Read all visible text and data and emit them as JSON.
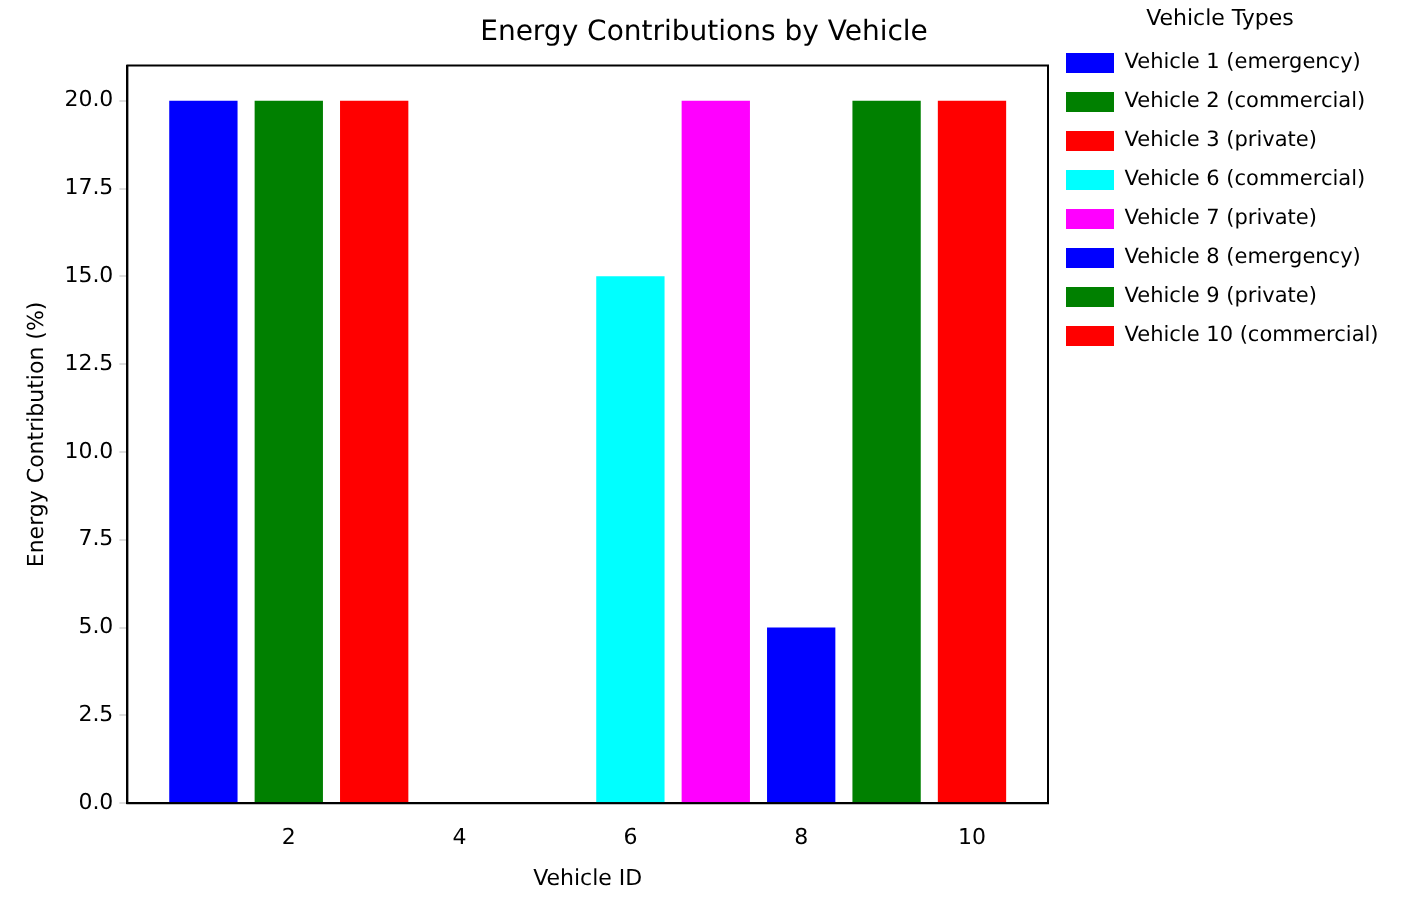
{
  "chart_data": {
    "type": "bar",
    "title": "Energy Contributions by Vehicle",
    "xlabel": "Vehicle ID",
    "ylabel": "Energy Contribution (%)",
    "legend_title": "Vehicle Types",
    "legend": "top right",
    "grid": false,
    "xlim": [
      0.11,
      10.89
    ],
    "xticks": [
      2,
      4,
      6,
      8,
      10
    ],
    "ylim": [
      0,
      21
    ],
    "yticks": [
      {
        "value": 0,
        "label": "0.0"
      },
      {
        "value": 2.5,
        "label": "2.5"
      },
      {
        "value": 5,
        "label": "5.0"
      },
      {
        "value": 7.5,
        "label": "7.5"
      },
      {
        "value": 10,
        "label": "10.0"
      },
      {
        "value": 12.5,
        "label": "12.5"
      },
      {
        "value": 15,
        "label": "15.0"
      },
      {
        "value": 17.5,
        "label": "17.5"
      },
      {
        "value": 20,
        "label": "20.0"
      }
    ],
    "series": [
      {
        "name": "Vehicle 1 (emergency)",
        "color": "#0000ff",
        "x": [
          1
        ],
        "values": [
          20
        ]
      },
      {
        "name": "Vehicle 2 (commercial)",
        "color": "#008000",
        "x": [
          2
        ],
        "values": [
          20
        ]
      },
      {
        "name": "Vehicle 3 (private)",
        "color": "#ff0000",
        "x": [
          3
        ],
        "values": [
          20
        ]
      },
      {
        "name": "Vehicle 6 (commercial)",
        "color": "#00ffff",
        "x": [
          6
        ],
        "values": [
          15
        ]
      },
      {
        "name": "Vehicle 7 (private)",
        "color": "#ff00ff",
        "x": [
          7
        ],
        "values": [
          20
        ]
      },
      {
        "name": "Vehicle 8 (emergency)",
        "color": "#0000ff",
        "x": [
          8
        ],
        "values": [
          5
        ]
      },
      {
        "name": "Vehicle 9 (private)",
        "color": "#008000",
        "x": [
          9
        ],
        "values": [
          20
        ]
      },
      {
        "name": "Vehicle 10 (commercial)",
        "color": "#ff0000",
        "x": [
          10
        ],
        "values": [
          20
        ]
      }
    ]
  }
}
